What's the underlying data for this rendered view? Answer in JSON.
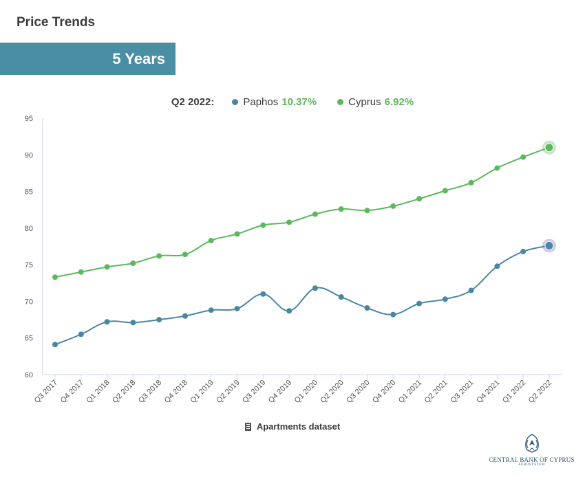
{
  "header": {
    "title": "Price Trends",
    "period": "5 Years"
  },
  "legend": {
    "label": "Q2 2022:",
    "items": [
      {
        "name": "Paphos",
        "change": "10.37%",
        "color": "#4a86a4"
      },
      {
        "name": "Cyprus",
        "change": "6.92%",
        "color": "#5cb85c"
      }
    ]
  },
  "footer": {
    "dataset": "Apartments dataset",
    "icon": "building-icon"
  },
  "logo": {
    "name": "CENTRAL BANK OF CYPRUS",
    "sub": "EUROSYSTEM"
  },
  "chart_data": {
    "type": "line",
    "categories": [
      "Q3 2017",
      "Q4 2017",
      "Q1 2018",
      "Q2 2018",
      "Q3 2018",
      "Q4 2018",
      "Q1 2019",
      "Q2 2019",
      "Q3 2019",
      "Q4 2019",
      "Q1 2020",
      "Q2 2020",
      "Q3 2020",
      "Q4 2020",
      "Q1 2021",
      "Q2 2021",
      "Q3 2021",
      "Q4 2021",
      "Q1 2022",
      "Q2 2022"
    ],
    "ylim": [
      60,
      95
    ],
    "yticks": [
      60,
      65,
      70,
      75,
      80,
      85,
      90,
      95
    ],
    "grid": false,
    "series": [
      {
        "name": "Paphos",
        "color": "#4a86a4",
        "values": [
          64.1,
          65.5,
          67.2,
          67.1,
          67.5,
          68.0,
          68.8,
          69.0,
          71.0,
          68.7,
          71.8,
          70.6,
          69.1,
          68.2,
          69.7,
          70.3,
          71.5,
          74.8,
          76.8,
          77.6
        ]
      },
      {
        "name": "Cyprus",
        "color": "#5cb85c",
        "values": [
          73.3,
          74.0,
          74.7,
          75.2,
          76.2,
          76.4,
          78.3,
          79.2,
          80.4,
          80.8,
          81.9,
          82.6,
          82.4,
          83.0,
          84.0,
          85.1,
          86.2,
          88.2,
          89.7,
          91.0
        ]
      }
    ]
  }
}
